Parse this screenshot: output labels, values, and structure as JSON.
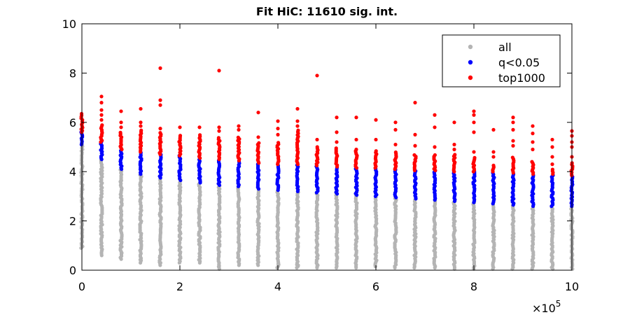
{
  "chart_data": {
    "type": "scatter",
    "title": "Fit HiC: 11610 sig. int.",
    "xlabel": "",
    "ylabel": "",
    "xlim": [
      0,
      1000000
    ],
    "ylim": [
      0,
      10
    ],
    "x_ticks": [
      0,
      200000,
      400000,
      600000,
      800000,
      1000000
    ],
    "x_tick_labels": [
      "0",
      "2",
      "4",
      "6",
      "8",
      "10"
    ],
    "x_exponent_label": {
      "base": "×10",
      "exponent": "5"
    },
    "y_ticks": [
      0,
      2,
      4,
      6,
      8,
      10
    ],
    "y_tick_labels": [
      "0",
      "2",
      "4",
      "6",
      "8",
      "10"
    ],
    "grid": false,
    "legend_position": "top-right",
    "colors": {
      "all": "#b4b4b4",
      "q": "#0000ff",
      "top": "#ff0000",
      "axis": "#000000"
    },
    "series": [
      {
        "name": "all",
        "color": "#b4b4b4"
      },
      {
        "name": "q<0.05",
        "color": "#0000ff"
      },
      {
        "name": "top1000",
        "color": "#ff0000"
      }
    ],
    "columns": [
      {
        "x": 0,
        "all_range": [
          0.9,
          5.1
        ],
        "q_range": [
          5.1,
          5.6
        ],
        "top_range": [
          5.6,
          6.35
        ],
        "top_outliers": []
      },
      {
        "x": 40000,
        "all_range": [
          0.6,
          4.5
        ],
        "q_range": [
          4.5,
          5.2
        ],
        "top_range": [
          5.2,
          5.9
        ],
        "top_outliers": [
          6.1,
          6.3,
          6.5,
          6.8,
          7.05
        ]
      },
      {
        "x": 80000,
        "all_range": [
          0.45,
          4.1
        ],
        "q_range": [
          4.1,
          4.9
        ],
        "top_range": [
          4.9,
          5.6
        ],
        "top_outliers": [
          5.8,
          6.0,
          6.45
        ]
      },
      {
        "x": 120000,
        "all_range": [
          0.3,
          3.9
        ],
        "q_range": [
          3.9,
          4.8
        ],
        "top_range": [
          4.8,
          5.7
        ],
        "top_outliers": [
          5.85,
          6.0,
          6.55
        ]
      },
      {
        "x": 160000,
        "all_range": [
          0.2,
          3.75
        ],
        "q_range": [
          3.75,
          4.7
        ],
        "top_range": [
          4.7,
          5.6
        ],
        "top_outliers": [
          5.75,
          6.7,
          6.9,
          8.2
        ]
      },
      {
        "x": 200000,
        "all_range": [
          0.3,
          3.65
        ],
        "q_range": [
          3.65,
          4.65
        ],
        "top_range": [
          4.65,
          5.5
        ],
        "top_outliers": [
          5.8
        ]
      },
      {
        "x": 240000,
        "all_range": [
          0.3,
          3.55
        ],
        "q_range": [
          3.55,
          4.55
        ],
        "top_range": [
          4.55,
          5.5
        ],
        "top_outliers": [
          5.8
        ]
      },
      {
        "x": 280000,
        "all_range": [
          0.05,
          3.45
        ],
        "q_range": [
          3.45,
          4.5
        ],
        "top_range": [
          4.5,
          5.4
        ],
        "top_outliers": [
          5.65,
          5.8,
          8.1
        ]
      },
      {
        "x": 320000,
        "all_range": [
          0.2,
          3.4
        ],
        "q_range": [
          3.4,
          4.45
        ],
        "top_range": [
          4.45,
          5.4
        ],
        "top_outliers": [
          5.7,
          5.85
        ]
      },
      {
        "x": 360000,
        "all_range": [
          0.2,
          3.3
        ],
        "q_range": [
          3.3,
          4.35
        ],
        "top_range": [
          4.35,
          5.2
        ],
        "top_outliers": [
          5.4,
          6.4
        ]
      },
      {
        "x": 400000,
        "all_range": [
          0.1,
          3.25
        ],
        "q_range": [
          3.25,
          4.3
        ],
        "top_range": [
          4.3,
          5.2
        ],
        "top_outliers": [
          5.5,
          5.75,
          6.05
        ]
      },
      {
        "x": 440000,
        "all_range": [
          0.1,
          3.2
        ],
        "q_range": [
          3.2,
          4.3
        ],
        "top_range": [
          4.3,
          5.7
        ],
        "top_outliers": [
          5.85,
          6.05,
          6.55
        ]
      },
      {
        "x": 480000,
        "all_range": [
          0.1,
          3.15
        ],
        "q_range": [
          3.15,
          4.25
        ],
        "top_range": [
          4.25,
          5.0
        ],
        "top_outliers": [
          5.3,
          7.9
        ]
      },
      {
        "x": 520000,
        "all_range": [
          0.1,
          3.1
        ],
        "q_range": [
          3.1,
          4.2
        ],
        "top_range": [
          4.2,
          4.95
        ],
        "top_outliers": [
          5.2,
          5.6,
          6.2
        ]
      },
      {
        "x": 560000,
        "all_range": [
          0.1,
          3.05
        ],
        "q_range": [
          3.05,
          4.15
        ],
        "top_range": [
          4.15,
          4.9
        ],
        "top_outliers": [
          5.3,
          6.2
        ]
      },
      {
        "x": 600000,
        "all_range": [
          0.15,
          3.0
        ],
        "q_range": [
          3.0,
          4.15
        ],
        "top_range": [
          4.15,
          4.85
        ],
        "top_outliers": [
          5.3,
          6.1
        ]
      },
      {
        "x": 640000,
        "all_range": [
          0.1,
          2.95
        ],
        "q_range": [
          2.95,
          4.1
        ],
        "top_range": [
          4.1,
          4.8
        ],
        "top_outliers": [
          5.1,
          5.7,
          6.0
        ]
      },
      {
        "x": 680000,
        "all_range": [
          0.1,
          2.9
        ],
        "q_range": [
          2.9,
          4.05
        ],
        "top_range": [
          4.05,
          4.7
        ],
        "top_outliers": [
          5.05,
          5.5,
          6.8
        ]
      },
      {
        "x": 720000,
        "all_range": [
          0.1,
          2.85
        ],
        "q_range": [
          2.85,
          4.05
        ],
        "top_range": [
          4.05,
          4.7
        ],
        "top_outliers": [
          5.0,
          5.8,
          6.3
        ]
      },
      {
        "x": 760000,
        "all_range": [
          0.05,
          2.8
        ],
        "q_range": [
          2.8,
          4.0
        ],
        "top_range": [
          4.0,
          4.7
        ],
        "top_outliers": [
          4.9,
          5.1,
          6.0
        ]
      },
      {
        "x": 800000,
        "all_range": [
          0.05,
          2.75
        ],
        "q_range": [
          2.75,
          4.0
        ],
        "top_range": [
          4.0,
          4.6
        ],
        "top_outliers": [
          4.8,
          5.6,
          6.0,
          6.3,
          6.45
        ]
      },
      {
        "x": 840000,
        "all_range": [
          0.05,
          2.7
        ],
        "q_range": [
          2.7,
          4.0
        ],
        "top_range": [
          4.0,
          4.3
        ],
        "top_outliers": [
          4.6,
          4.8,
          5.7
        ]
      },
      {
        "x": 880000,
        "all_range": [
          0.05,
          2.65
        ],
        "q_range": [
          2.65,
          3.95
        ],
        "top_range": [
          3.95,
          4.6
        ],
        "top_outliers": [
          5.05,
          5.25,
          5.7,
          6.0,
          6.2
        ]
      },
      {
        "x": 920000,
        "all_range": [
          0.05,
          2.6
        ],
        "q_range": [
          2.6,
          3.9
        ],
        "top_range": [
          3.9,
          4.4
        ],
        "top_outliers": [
          4.9,
          5.2,
          5.55,
          5.85
        ]
      },
      {
        "x": 960000,
        "all_range": [
          0.05,
          2.6
        ],
        "q_range": [
          2.6,
          3.9
        ],
        "top_range": [
          3.9,
          4.1
        ],
        "top_outliers": [
          4.3,
          4.6,
          5.0,
          5.3
        ]
      },
      {
        "x": 1000000,
        "all_range": [
          0.05,
          2.6
        ],
        "q_range": [
          2.6,
          3.85
        ],
        "top_range": [
          3.85,
          4.4
        ],
        "top_outliers": [
          4.6,
          5.0,
          5.2,
          5.45,
          5.65
        ]
      }
    ],
    "all_scattered": [
      [
        0,
        3.3
      ],
      [
        0,
        2.1
      ],
      [
        0,
        1.5
      ],
      [
        40000,
        0.8
      ],
      [
        40000,
        3.9
      ],
      [
        80000,
        3.6
      ],
      [
        80000,
        0.7
      ],
      [
        120000,
        0.4
      ],
      [
        160000,
        0.3
      ],
      [
        200000,
        0.5
      ],
      [
        240000,
        0.4
      ],
      [
        280000,
        0.15
      ],
      [
        320000,
        0.35
      ],
      [
        360000,
        0.4
      ],
      [
        400000,
        0.25
      ],
      [
        440000,
        0.2
      ],
      [
        480000,
        0.2
      ]
    ]
  }
}
